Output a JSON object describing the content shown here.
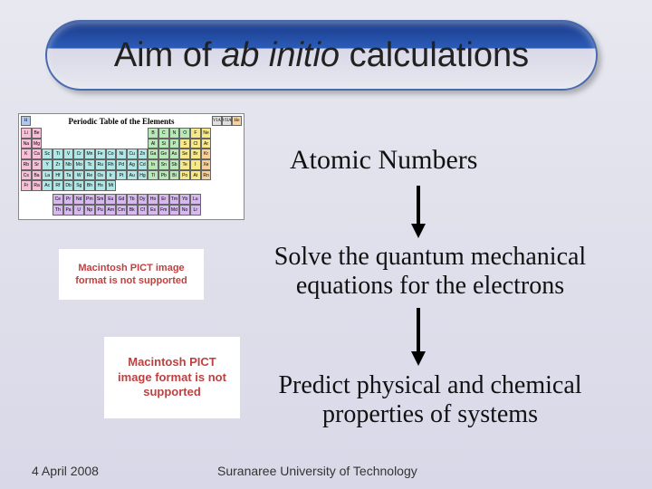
{
  "title": {
    "pre": "Aim of ",
    "italic": "ab initio",
    "post": " calculations"
  },
  "headings": {
    "atomic": "Atomic Numbers",
    "solve": "Solve the quantum mechanical equations for the electrons",
    "predict": "Predict physical and chemical properties of systems"
  },
  "pict": {
    "text": "Macintosh PICT image format is not supported"
  },
  "footer": {
    "date": "4 April 2008",
    "uni": "Suranaree University of Technology"
  },
  "periodic": {
    "title": "Periodic Table of the Elements",
    "top_left": "H",
    "top_right": [
      "VIA",
      "VIIA",
      "He"
    ],
    "row2_l": [
      "Li",
      "Be"
    ],
    "row2_r": [
      "B",
      "C",
      "N",
      "O",
      "F",
      "Ne"
    ],
    "row3_l": [
      "Na",
      "Mg"
    ],
    "row3_r": [
      "Al",
      "Si",
      "P",
      "S",
      "Cl",
      "Ar"
    ],
    "row4": [
      "K",
      "Ca",
      "Sc",
      "Ti",
      "V",
      "Cr",
      "Mn",
      "Fe",
      "Co",
      "Ni",
      "Cu",
      "Zn",
      "Ga",
      "Ge",
      "As",
      "Se",
      "Br",
      "Kr"
    ],
    "row5": [
      "Rb",
      "Sr",
      "Y",
      "Zr",
      "Nb",
      "Mo",
      "Tc",
      "Ru",
      "Rh",
      "Pd",
      "Ag",
      "Cd",
      "In",
      "Sn",
      "Sb",
      "Te",
      "I",
      "Xe"
    ],
    "row6": [
      "Cs",
      "Ba",
      "La",
      "Hf",
      "Ta",
      "W",
      "Re",
      "Os",
      "Ir",
      "Pt",
      "Au",
      "Hg",
      "Tl",
      "Pb",
      "Bi",
      "Po",
      "At",
      "Rn"
    ],
    "row7": [
      "Fr",
      "Ra",
      "Ac",
      "Rf",
      "Db",
      "Sg",
      "Bh",
      "Hs",
      "Mt",
      "",
      "",
      "",
      "",
      "",
      "",
      "",
      "",
      ""
    ],
    "lan": [
      "Ce",
      "Pr",
      "Nd",
      "Pm",
      "Sm",
      "Eu",
      "Gd",
      "Tb",
      "Dy",
      "Ho",
      "Er",
      "Tm",
      "Yb",
      "Lu"
    ],
    "act": [
      "Th",
      "Pa",
      "U",
      "Np",
      "Pu",
      "Am",
      "Cm",
      "Bk",
      "Cf",
      "Es",
      "Fm",
      "Md",
      "No",
      "Lr"
    ]
  },
  "arrows": {
    "color": "#000000",
    "width": 4,
    "length1": 52,
    "length2": 58
  }
}
